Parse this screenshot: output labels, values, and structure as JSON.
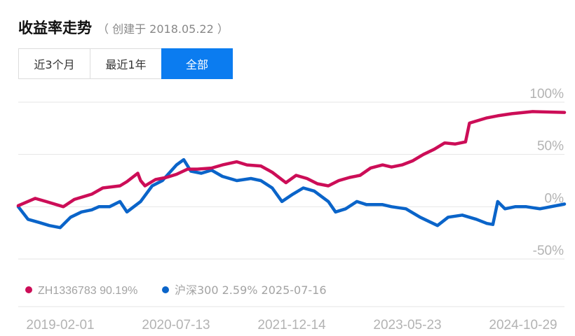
{
  "header": {
    "title": "收益率走势",
    "subtitle": "（ 创建于 2018.05.22 ）"
  },
  "tabs": [
    {
      "label": "近3个月",
      "active": false
    },
    {
      "label": "最近1年",
      "active": false
    },
    {
      "label": "全部",
      "active": true
    }
  ],
  "colors": {
    "portfolio": "#cc0d57",
    "index": "#0a64c9",
    "accent": "#0b7cf0"
  },
  "chart_data": {
    "type": "line",
    "ylim": [
      -50,
      100
    ],
    "y_ticks": [
      "100%",
      "50%",
      "0%",
      "-50%"
    ],
    "x_ticks": [
      "2019-02-01",
      "2020-07-13",
      "2021-12-14",
      "2023-05-23",
      "2024-10-29"
    ],
    "x_range": [
      "2019-02-01",
      "2025-07-16"
    ],
    "legend": [
      {
        "name": "ZH1336783",
        "value": "90.19%"
      },
      {
        "name": "沪深300",
        "value": "2.59%",
        "date": "2025-07-16"
      }
    ],
    "series": [
      {
        "name": "ZH1336783",
        "points": [
          [
            "2019-02-01",
            1
          ],
          [
            "2019-04-15",
            8
          ],
          [
            "2019-06-01",
            5
          ],
          [
            "2019-08-15",
            0
          ],
          [
            "2019-10-01",
            7
          ],
          [
            "2019-12-15",
            12
          ],
          [
            "2020-02-01",
            18
          ],
          [
            "2020-04-15",
            20
          ],
          [
            "2020-05-15",
            24
          ],
          [
            "2020-07-01",
            32
          ],
          [
            "2020-07-13",
            25
          ],
          [
            "2020-08-01",
            20
          ],
          [
            "2020-09-15",
            26
          ],
          [
            "2020-11-01",
            28
          ],
          [
            "2020-12-15",
            31
          ],
          [
            "2021-02-01",
            36
          ],
          [
            "2021-03-15",
            36
          ],
          [
            "2021-05-15",
            37
          ],
          [
            "2021-07-01",
            40
          ],
          [
            "2021-09-01",
            43
          ],
          [
            "2021-10-15",
            40
          ],
          [
            "2021-12-14",
            39
          ],
          [
            "2022-02-01",
            33
          ],
          [
            "2022-04-01",
            23
          ],
          [
            "2022-05-15",
            30
          ],
          [
            "2022-07-01",
            27
          ],
          [
            "2022-08-15",
            22
          ],
          [
            "2022-10-01",
            20
          ],
          [
            "2022-11-15",
            25
          ],
          [
            "2023-01-01",
            28
          ],
          [
            "2023-02-15",
            30
          ],
          [
            "2023-04-01",
            37
          ],
          [
            "2023-05-23",
            40
          ],
          [
            "2023-07-01",
            38
          ],
          [
            "2023-08-15",
            40
          ],
          [
            "2023-10-01",
            44
          ],
          [
            "2023-11-15",
            50
          ],
          [
            "2024-01-01",
            55
          ],
          [
            "2024-02-15",
            61
          ],
          [
            "2024-04-01",
            60
          ],
          [
            "2024-05-15",
            62
          ],
          [
            "2024-06-01",
            80
          ],
          [
            "2024-07-01",
            82
          ],
          [
            "2024-08-15",
            85
          ],
          [
            "2024-10-01",
            87
          ],
          [
            "2024-12-01",
            89
          ],
          [
            "2025-03-01",
            91
          ],
          [
            "2025-07-16",
            90.19
          ]
        ]
      },
      {
        "name": "沪深300",
        "points": [
          [
            "2019-02-01",
            0
          ],
          [
            "2019-03-15",
            -12
          ],
          [
            "2019-05-01",
            -15
          ],
          [
            "2019-06-15",
            -18
          ],
          [
            "2019-08-01",
            -20
          ],
          [
            "2019-09-15",
            -10
          ],
          [
            "2019-11-01",
            -5
          ],
          [
            "2019-12-15",
            -3
          ],
          [
            "2020-01-15",
            0
          ],
          [
            "2020-03-01",
            0
          ],
          [
            "2020-04-15",
            5
          ],
          [
            "2020-05-15",
            -5
          ],
          [
            "2020-07-13",
            5
          ],
          [
            "2020-09-01",
            20
          ],
          [
            "2020-10-15",
            25
          ],
          [
            "2020-12-15",
            40
          ],
          [
            "2021-01-15",
            45
          ],
          [
            "2021-02-15",
            34
          ],
          [
            "2021-04-01",
            32
          ],
          [
            "2021-05-15",
            35
          ],
          [
            "2021-07-01",
            29
          ],
          [
            "2021-09-01",
            25
          ],
          [
            "2021-11-01",
            27
          ],
          [
            "2021-12-14",
            25
          ],
          [
            "2022-02-01",
            18
          ],
          [
            "2022-03-15",
            5
          ],
          [
            "2022-05-01",
            12
          ],
          [
            "2022-06-15",
            18
          ],
          [
            "2022-08-01",
            15
          ],
          [
            "2022-10-01",
            5
          ],
          [
            "2022-11-01",
            -5
          ],
          [
            "2022-12-15",
            -2
          ],
          [
            "2023-02-01",
            5
          ],
          [
            "2023-03-15",
            2
          ],
          [
            "2023-05-23",
            2
          ],
          [
            "2023-07-01",
            0
          ],
          [
            "2023-09-01",
            -2
          ],
          [
            "2023-11-01",
            -10
          ],
          [
            "2024-01-15",
            -18
          ],
          [
            "2024-03-01",
            -10
          ],
          [
            "2024-05-01",
            -8
          ],
          [
            "2024-07-01",
            -12
          ],
          [
            "2024-08-15",
            -16
          ],
          [
            "2024-09-10",
            -17
          ],
          [
            "2024-10-01",
            5
          ],
          [
            "2024-11-01",
            -2
          ],
          [
            "2024-12-15",
            0
          ],
          [
            "2025-02-01",
            0
          ],
          [
            "2025-04-01",
            -2
          ],
          [
            "2025-07-16",
            2.59
          ]
        ]
      }
    ]
  }
}
